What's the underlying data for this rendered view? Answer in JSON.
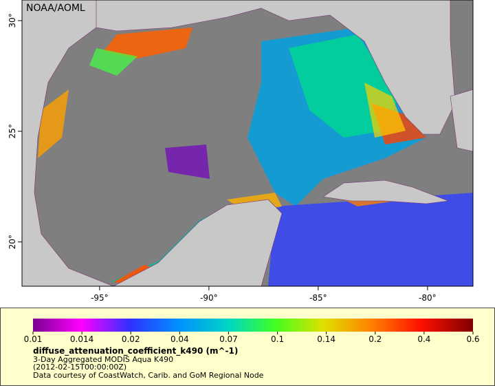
{
  "map": {
    "credit_top": "NOAA/AOML",
    "lon_range": [
      -98.55,
      -77.92
    ],
    "lat_range": [
      18.0,
      30.93
    ],
    "lon_ticks": [
      {
        "value": -95,
        "label": "-95°"
      },
      {
        "value": -90,
        "label": "-90°"
      },
      {
        "value": -85,
        "label": "-85°"
      },
      {
        "value": -80,
        "label": "-80°"
      }
    ],
    "lat_ticks": [
      {
        "value": 30,
        "label": "30°"
      },
      {
        "value": 25,
        "label": "25°"
      },
      {
        "value": 20,
        "label": "20°"
      }
    ]
  },
  "legend": {
    "ticks": [
      0.01,
      0.014,
      0.02,
      0.04,
      0.07,
      0.1,
      0.14,
      0.2,
      0.4,
      0.6
    ],
    "variable": "diffuse_attenuation_coefficient_k490 (m^-1)",
    "lines": [
      "3-Day Aggregated MODIS Aqua K490",
      "(2012-02-15T00:00:00Z)",
      "Data courtesy of CoastWatch, Carib. and GoM Regional Node"
    ]
  }
}
